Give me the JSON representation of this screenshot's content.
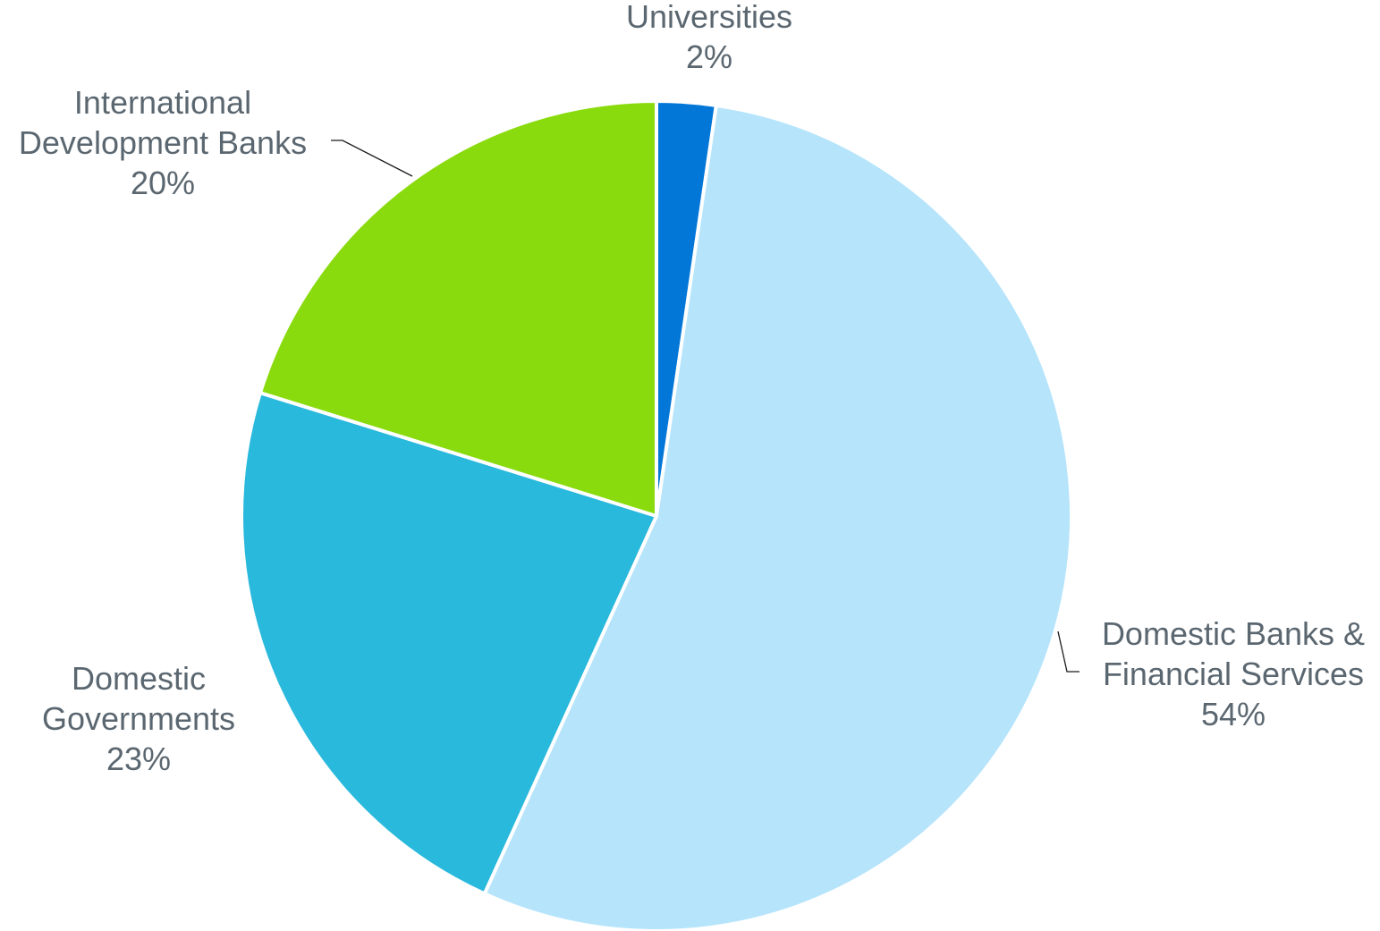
{
  "chart_data": {
    "type": "pie",
    "start_angle": "12 o'clock",
    "direction": "clockwise",
    "slices": [
      {
        "key": "universities",
        "label_lines": [
          "Universities"
        ],
        "percent_label": "2%",
        "value": 2.3,
        "color": "#0277d8"
      },
      {
        "key": "domestic-banks",
        "label_lines": [
          "Domestic Banks &",
          "Financial Services"
        ],
        "percent_label": "54%",
        "value": 54.5,
        "color": "#b5e4fb"
      },
      {
        "key": "domestic-governments",
        "label_lines": [
          "Domestic",
          "Governments"
        ],
        "percent_label": "23%",
        "value": 23.0,
        "color": "#29b9dc"
      },
      {
        "key": "international-development-banks",
        "label_lines": [
          "International",
          "Development Banks"
        ],
        "percent_label": "20%",
        "value": 20.2,
        "color": "#89db0d"
      }
    ]
  }
}
